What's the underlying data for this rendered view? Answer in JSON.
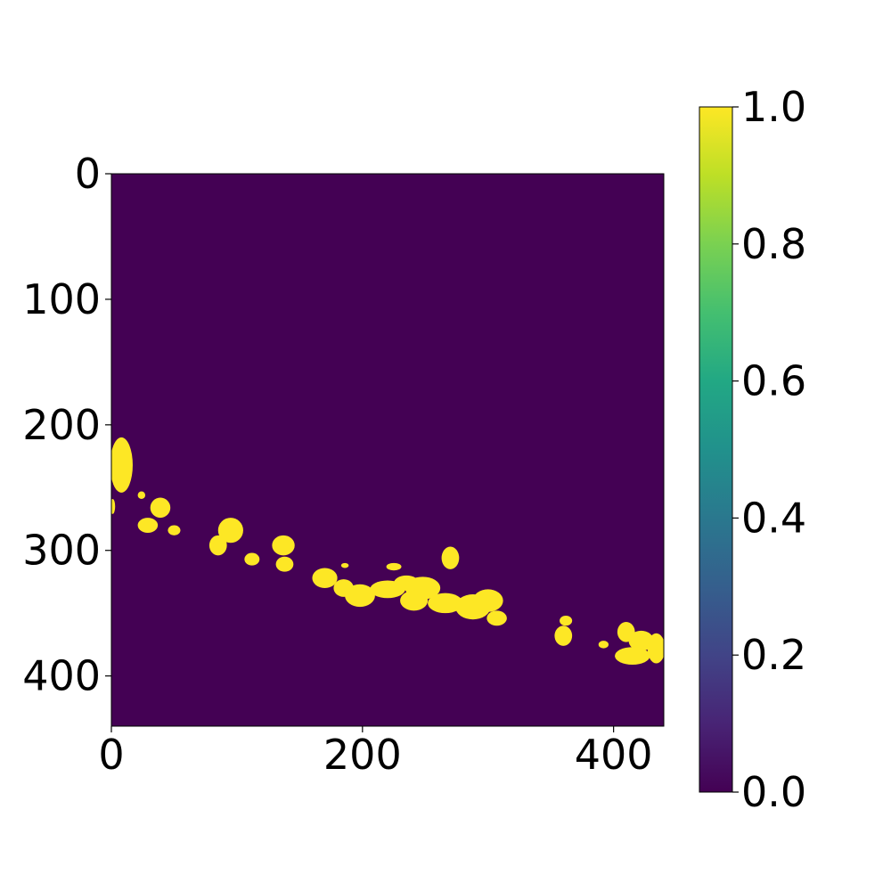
{
  "chart_data": {
    "type": "heatmap",
    "description_kind": "binary mask image",
    "title": "",
    "xlabel": "",
    "ylabel": "",
    "xlim": [
      0,
      440
    ],
    "ylim": [
      440,
      0
    ],
    "x_ticks": [
      0,
      200,
      400
    ],
    "y_ticks": [
      0,
      100,
      200,
      300,
      400
    ],
    "x_tick_labels": [
      "0",
      "200",
      "400"
    ],
    "y_tick_labels": [
      "0",
      "100",
      "200",
      "300",
      "400"
    ],
    "colormap": "viridis",
    "colorbar": {
      "range": [
        0.0,
        1.0
      ],
      "ticks": [
        0.0,
        0.2,
        0.4,
        0.6,
        0.8,
        1.0
      ],
      "tick_labels": [
        "0.0",
        "0.2",
        "0.4",
        "0.6",
        "0.8",
        "1.0"
      ],
      "placement": "right"
    },
    "background_value": 0.0,
    "foreground_value": 1.0,
    "background_color": "#440154",
    "foreground_color": "#fde725",
    "mask_regions": [
      {
        "x": 8,
        "y": 232,
        "rx": 9,
        "ry": 22
      },
      {
        "x": 1,
        "y": 265,
        "rx": 2,
        "ry": 6
      },
      {
        "x": 24,
        "y": 256,
        "rx": 3,
        "ry": 3
      },
      {
        "x": 39,
        "y": 266,
        "rx": 8,
        "ry": 8
      },
      {
        "x": 29,
        "y": 280,
        "rx": 8,
        "ry": 6
      },
      {
        "x": 50,
        "y": 284,
        "rx": 5,
        "ry": 4
      },
      {
        "x": 95,
        "y": 284,
        "rx": 10,
        "ry": 10
      },
      {
        "x": 85,
        "y": 296,
        "rx": 7,
        "ry": 8
      },
      {
        "x": 112,
        "y": 307,
        "rx": 6,
        "ry": 5
      },
      {
        "x": 137,
        "y": 296,
        "rx": 9,
        "ry": 8
      },
      {
        "x": 138,
        "y": 311,
        "rx": 7,
        "ry": 6
      },
      {
        "x": 170,
        "y": 322,
        "rx": 10,
        "ry": 8
      },
      {
        "x": 185,
        "y": 330,
        "rx": 8,
        "ry": 7
      },
      {
        "x": 198,
        "y": 336,
        "rx": 12,
        "ry": 9
      },
      {
        "x": 220,
        "y": 331,
        "rx": 14,
        "ry": 7
      },
      {
        "x": 235,
        "y": 326,
        "rx": 10,
        "ry": 6
      },
      {
        "x": 248,
        "y": 330,
        "rx": 14,
        "ry": 9
      },
      {
        "x": 241,
        "y": 340,
        "rx": 11,
        "ry": 8
      },
      {
        "x": 266,
        "y": 342,
        "rx": 14,
        "ry": 8
      },
      {
        "x": 288,
        "y": 345,
        "rx": 14,
        "ry": 10
      },
      {
        "x": 300,
        "y": 340,
        "rx": 12,
        "ry": 9
      },
      {
        "x": 307,
        "y": 354,
        "rx": 8,
        "ry": 6
      },
      {
        "x": 270,
        "y": 306,
        "rx": 7,
        "ry": 9
      },
      {
        "x": 225,
        "y": 313,
        "rx": 6,
        "ry": 3
      },
      {
        "x": 186,
        "y": 312,
        "rx": 3,
        "ry": 2
      },
      {
        "x": 360,
        "y": 368,
        "rx": 7,
        "ry": 8
      },
      {
        "x": 362,
        "y": 356,
        "rx": 5,
        "ry": 4
      },
      {
        "x": 392,
        "y": 375,
        "rx": 4,
        "ry": 3
      },
      {
        "x": 410,
        "y": 365,
        "rx": 7,
        "ry": 8
      },
      {
        "x": 422,
        "y": 372,
        "rx": 10,
        "ry": 8
      },
      {
        "x": 415,
        "y": 384,
        "rx": 14,
        "ry": 7
      },
      {
        "x": 434,
        "y": 378,
        "rx": 7,
        "ry": 12
      }
    ]
  }
}
